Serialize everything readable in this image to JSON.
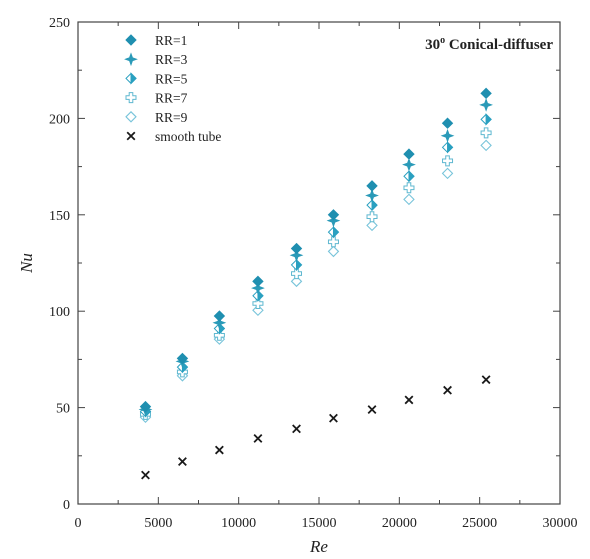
{
  "chart_data": {
    "type": "scatter",
    "title": "30° Conical-diffuser",
    "xlabel": "Re",
    "ylabel": "Nu",
    "xlim": [
      0,
      30000
    ],
    "ylim": [
      0,
      250
    ],
    "xticks": [
      "0",
      "5000",
      "10000",
      "15000",
      "20000",
      "25000",
      "30000"
    ],
    "yticks": [
      "0",
      "50",
      "100",
      "150",
      "200",
      "250"
    ],
    "grid": false,
    "legend_position": "top-left",
    "x": [
      4200,
      6500,
      8800,
      11200,
      13600,
      15900,
      18300,
      20600,
      23000,
      25400
    ],
    "series": [
      {
        "name": "RR=1",
        "marker": "diamond-filled",
        "color": "#1f8fb0",
        "values": [
          50.5,
          75.5,
          97.5,
          115.5,
          132.5,
          150,
          165,
          181.5,
          197.5,
          213
        ]
      },
      {
        "name": "RR=3",
        "marker": "star-four",
        "color": "#2a9ab8",
        "values": [
          49,
          74,
          94,
          112,
          129,
          147,
          160,
          176,
          191,
          207
        ]
      },
      {
        "name": "RR=5",
        "marker": "diamond-half",
        "color": "#2aa0c0",
        "values": [
          48,
          71,
          91,
          108,
          124,
          141,
          155,
          170,
          185,
          199.5
        ]
      },
      {
        "name": "RR=7",
        "marker": "plus-open",
        "color": "#5fb8d0",
        "values": [
          46.5,
          68.5,
          87.5,
          104,
          119.5,
          136,
          149,
          164,
          178,
          192.5
        ]
      },
      {
        "name": "RR=9",
        "marker": "diamond-open",
        "color": "#78c4da",
        "values": [
          45,
          66.5,
          85.5,
          100.5,
          115.5,
          131,
          144.5,
          158,
          171.5,
          186
        ]
      },
      {
        "name": "smooth tube",
        "marker": "x",
        "color": "#1a1a1a",
        "values": [
          15,
          22,
          28,
          34,
          39,
          44.5,
          49,
          54,
          59,
          64.5
        ]
      }
    ]
  }
}
